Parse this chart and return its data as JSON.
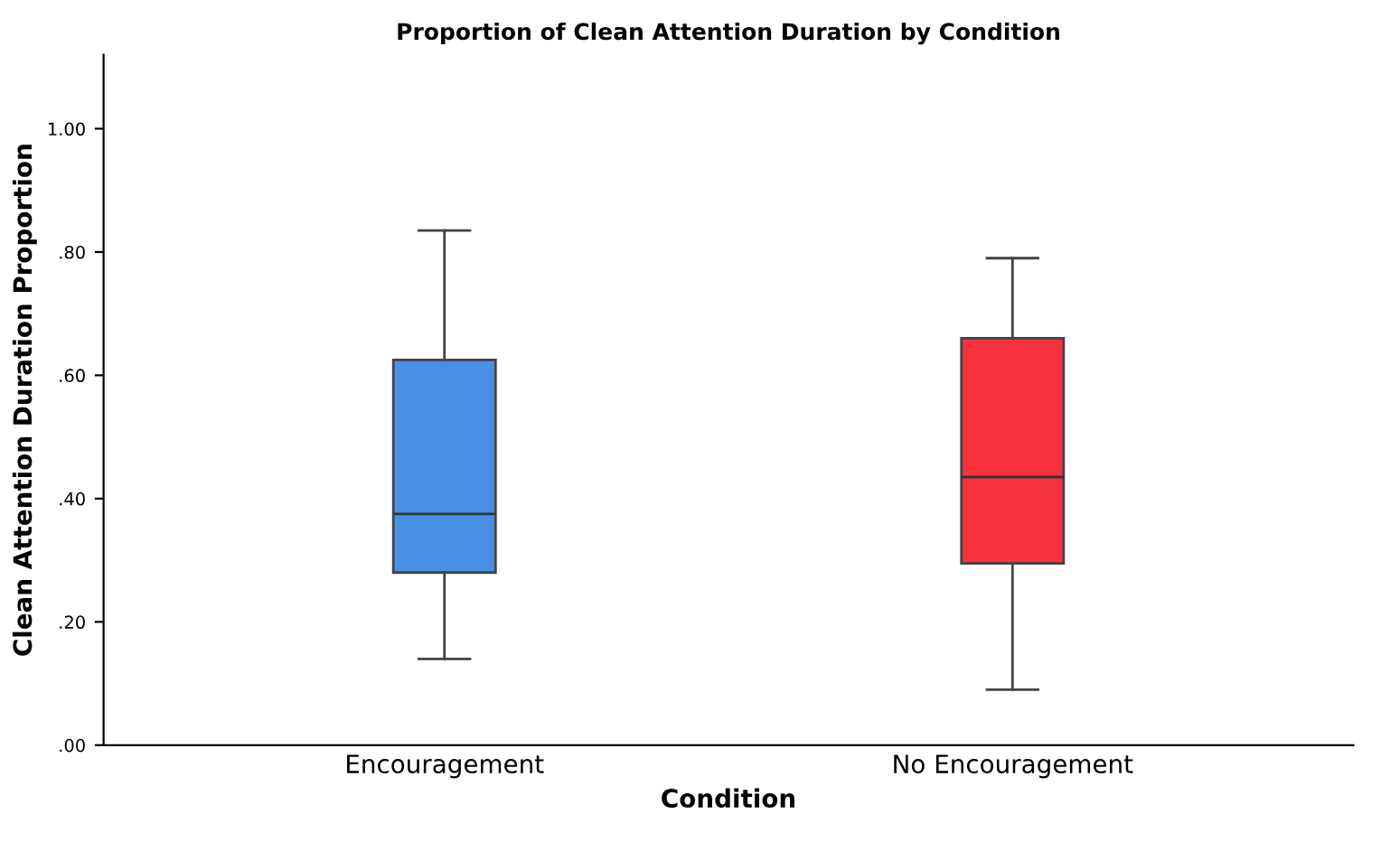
{
  "chart_data": {
    "type": "box",
    "title": "Proportion of Clean Attention Duration by Condition",
    "xlabel": "Condition",
    "ylabel": "Clean Attention Duration Proportion",
    "categories": [
      "Encouragement",
      "No Encouragement"
    ],
    "colors": [
      "#4a8fe6",
      "#f7323f"
    ],
    "boxes": [
      {
        "low": 0.14,
        "q1": 0.28,
        "median": 0.375,
        "q3": 0.625,
        "high": 0.835
      },
      {
        "low": 0.09,
        "q1": 0.295,
        "median": 0.435,
        "q3": 0.66,
        "high": 0.79
      }
    ],
    "ylim": [
      0,
      1.12
    ],
    "yticks": [
      {
        "value": 0,
        "label": ".00"
      },
      {
        "value": 0.2,
        "label": ".20"
      },
      {
        "value": 0.4,
        "label": ".40"
      },
      {
        "value": 0.6,
        "label": ".60"
      },
      {
        "value": 0.8,
        "label": ".80"
      },
      {
        "value": 1.0,
        "label": "1.00"
      }
    ],
    "grid": false
  }
}
